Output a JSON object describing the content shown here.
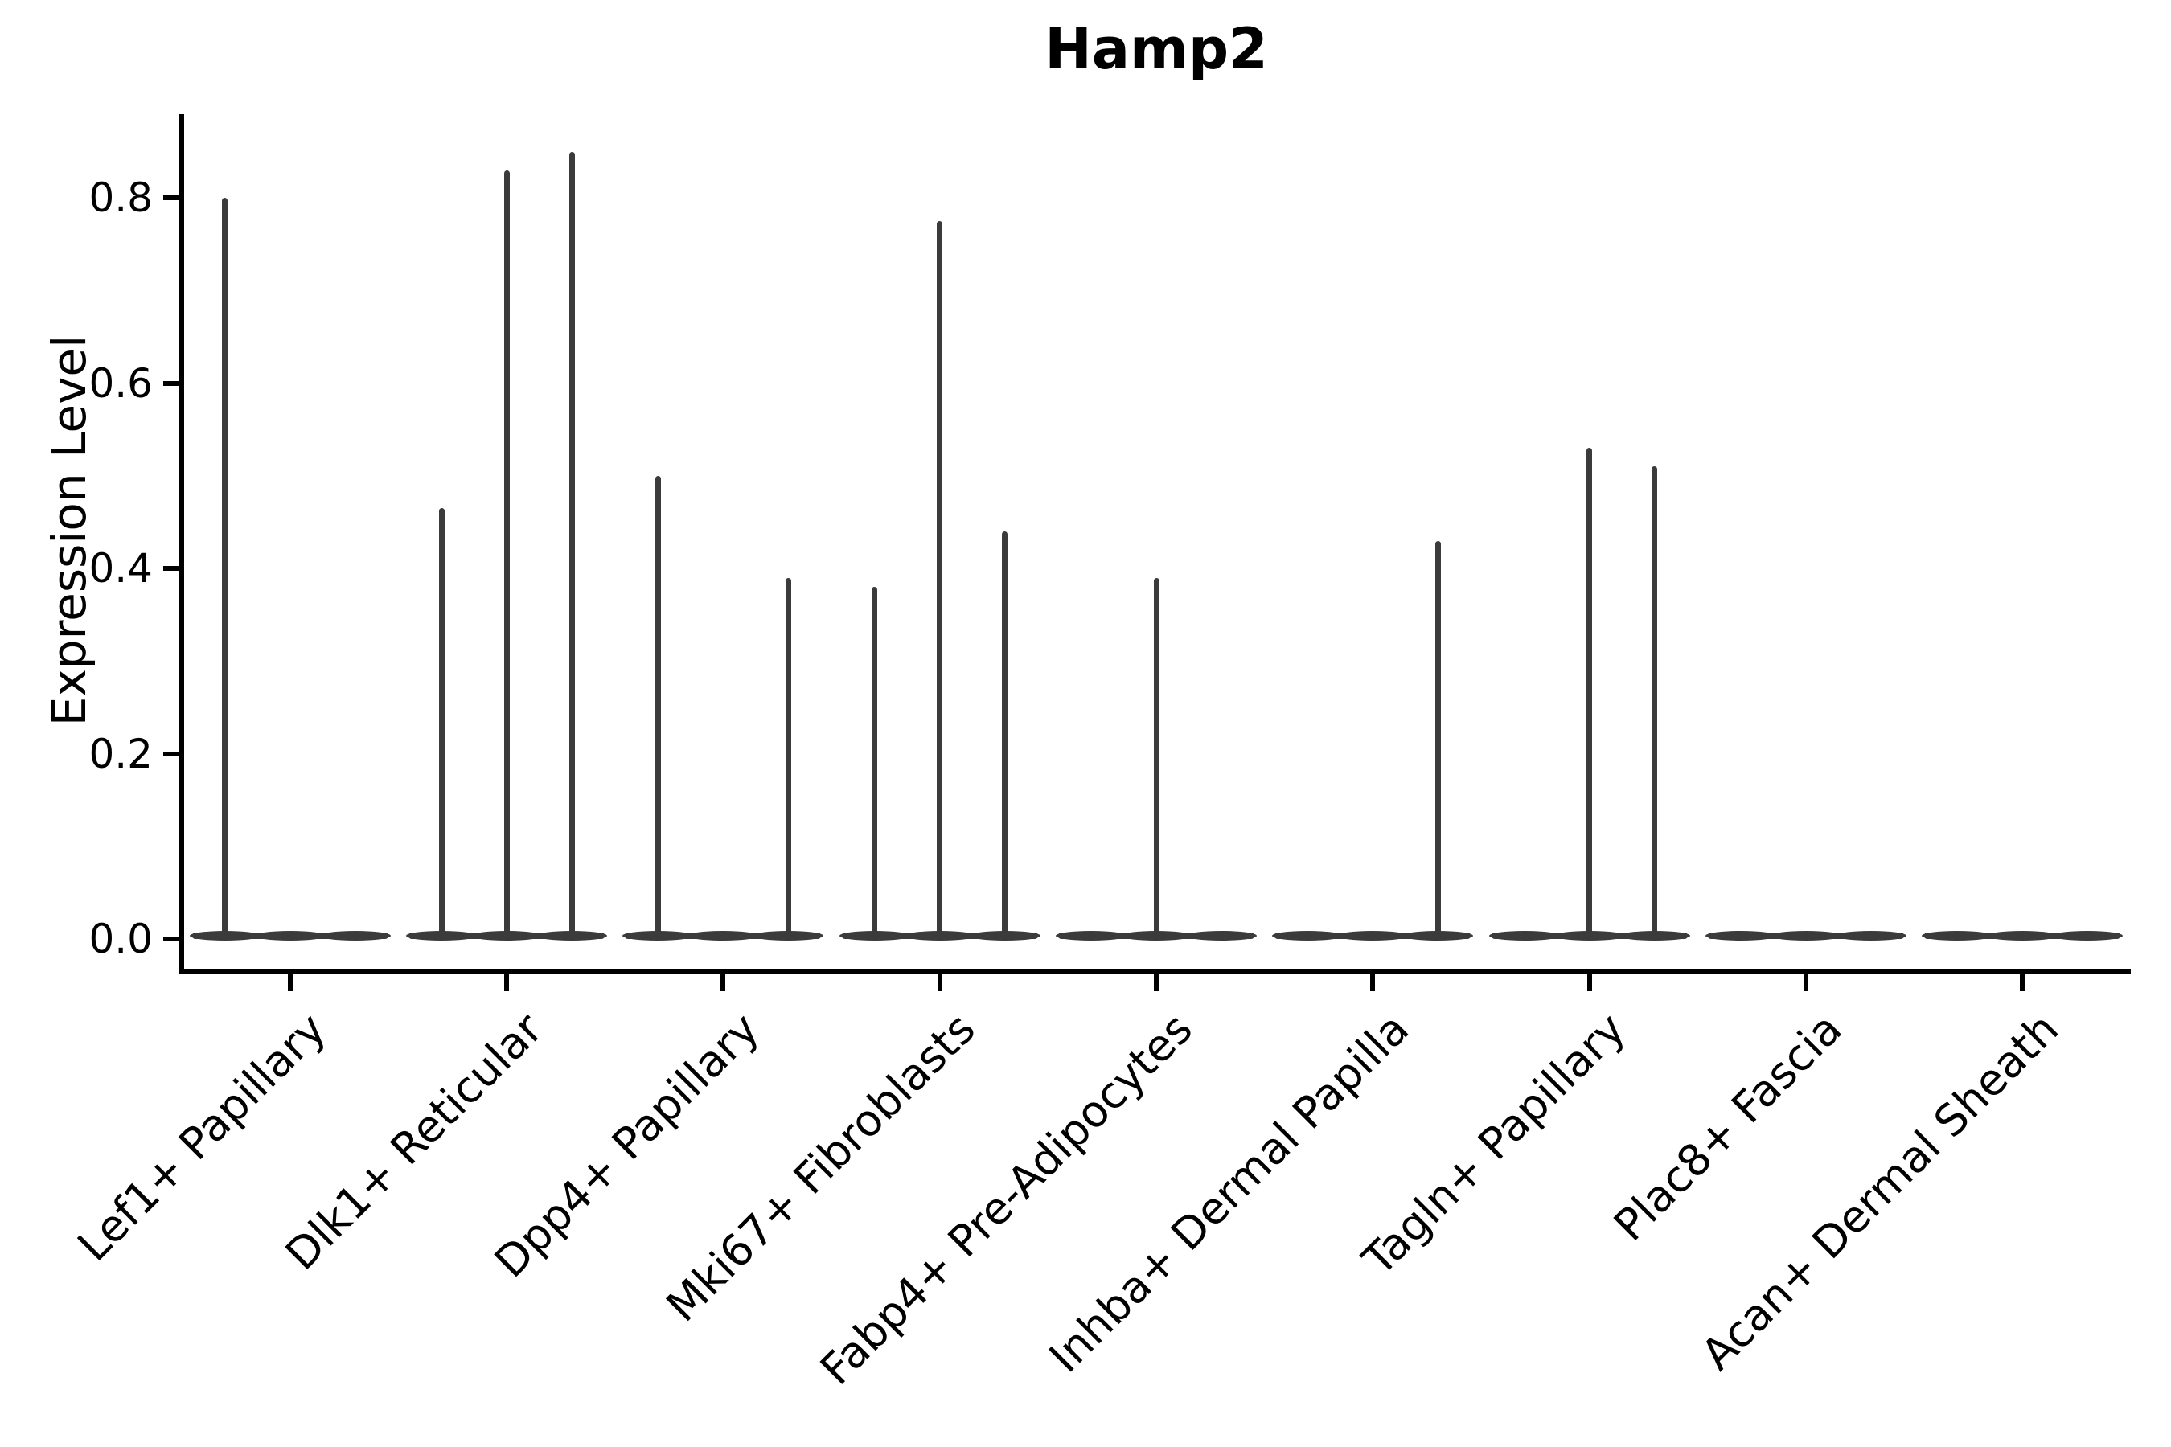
{
  "chart_data": {
    "type": "violin",
    "title": "Hamp2",
    "xlabel": "",
    "ylabel": "Expression Level",
    "y_tick_labels": [
      "0.0",
      "0.2",
      "0.4",
      "0.6",
      "0.8"
    ],
    "y_tick_values": [
      0.0,
      0.2,
      0.4,
      0.6,
      0.8
    ],
    "ylim": [
      -0.035,
      0.891
    ],
    "grid": false,
    "legend": "none",
    "x_tick_rotation": 45,
    "violins_per_category": 3,
    "categories": [
      "Lef1+ Papillary",
      "Dlk1+ Reticular",
      "Dpp4+ Papillary",
      "Mki67+ Fibroblasts",
      "Fabp4+ Pre-Adipocytes",
      "Inhba+ Dermal Papilla",
      "Tagln+ Papillary",
      "Plac8+ Fascia",
      "Acan+ Dermal Sheath"
    ],
    "groups": [
      {
        "category": "Lef1+ Papillary",
        "maxima": [
          0.8,
          null,
          null
        ]
      },
      {
        "category": "Dlk1+ Reticular",
        "maxima": [
          0.465,
          0.83,
          0.85
        ]
      },
      {
        "category": "Dpp4+ Papillary",
        "maxima": [
          0.5,
          null,
          0.39
        ]
      },
      {
        "category": "Mki67+ Fibroblasts",
        "maxima": [
          0.38,
          0.775,
          0.44
        ]
      },
      {
        "category": "Fabp4+ Pre-Adipocytes",
        "maxima": [
          null,
          0.39,
          null
        ]
      },
      {
        "category": "Inhba+ Dermal Papilla",
        "maxima": [
          null,
          null,
          0.43
        ]
      },
      {
        "category": "Tagln+ Papillary",
        "maxima": [
          null,
          0.53,
          0.51
        ]
      },
      {
        "category": "Plac8+ Fascia",
        "maxima": [
          null,
          null,
          null
        ]
      },
      {
        "category": "Acan+ Dermal Sheath",
        "maxima": [
          null,
          null,
          null
        ]
      }
    ],
    "colors": {
      "violin": "#3b3b3b",
      "axis": "#000000",
      "text": "#000000",
      "background": "#ffffff"
    }
  }
}
